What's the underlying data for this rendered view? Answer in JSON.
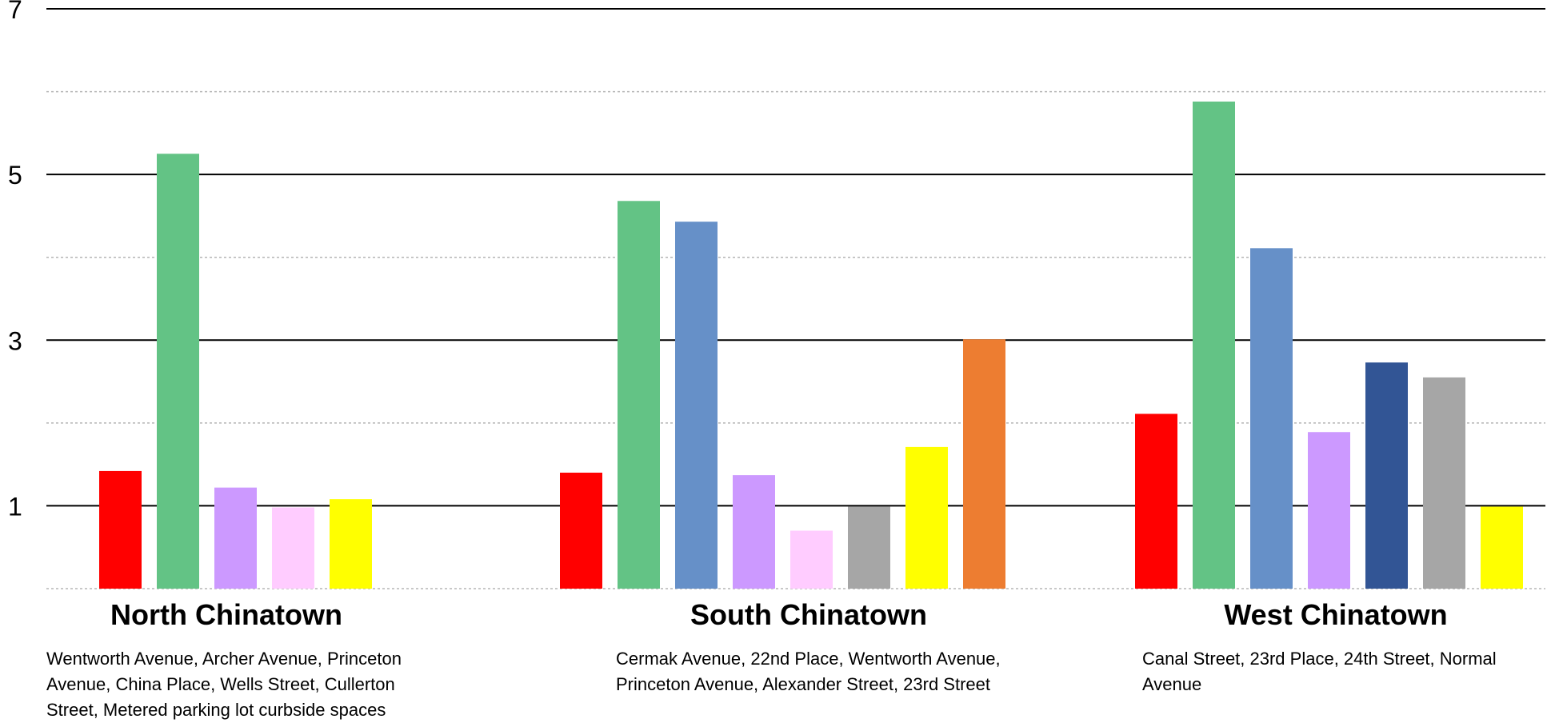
{
  "chart_data": {
    "type": "bar",
    "ylim": [
      0,
      7
    ],
    "yticks": [
      "1",
      "3",
      "5",
      "7"
    ],
    "grid": true,
    "categories": [
      "North Chinatown",
      "South Chinatown",
      "West Chinatown"
    ],
    "category_descriptions": [
      "Wentworth Avenue, Archer Avenue, Princeton Avenue, China Place, Wells Street, Cullerton Street, Metered parking lot curbside spaces",
      "Cermak Avenue, 22nd Place, Wentworth Avenue, Princeton Avenue, Alexander Street, 23rd Street",
      "Canal Street, 23rd Place, 24th Street, Normal Avenue"
    ],
    "groups": [
      {
        "bars": [
          {
            "value": 1.42,
            "color": "#ff0000"
          },
          {
            "value": 5.25,
            "color": "#63c385"
          },
          {
            "value": 1.22,
            "color": "#cc99ff"
          },
          {
            "value": 0.98,
            "color": "#ffccff"
          },
          {
            "value": 1.08,
            "color": "#ffff00"
          }
        ]
      },
      {
        "bars": [
          {
            "value": 1.4,
            "color": "#ff0000"
          },
          {
            "value": 4.68,
            "color": "#63c385"
          },
          {
            "value": 4.43,
            "color": "#6690c8"
          },
          {
            "value": 1.37,
            "color": "#cc99ff"
          },
          {
            "value": 0.7,
            "color": "#ffccff"
          },
          {
            "value": 0.99,
            "color": "#a6a6a6"
          },
          {
            "value": 1.71,
            "color": "#ffff00"
          },
          {
            "value": 3.01,
            "color": "#ed7d31"
          }
        ]
      },
      {
        "bars": [
          {
            "value": 2.11,
            "color": "#ff0000"
          },
          {
            "value": 5.88,
            "color": "#63c385"
          },
          {
            "value": 4.11,
            "color": "#6690c8"
          },
          {
            "value": 1.89,
            "color": "#cc99ff"
          },
          {
            "value": 2.73,
            "color": "#325595"
          },
          {
            "value": 2.55,
            "color": "#a6a6a6"
          },
          {
            "value": 0.99,
            "color": "#ffff00"
          }
        ]
      }
    ]
  }
}
